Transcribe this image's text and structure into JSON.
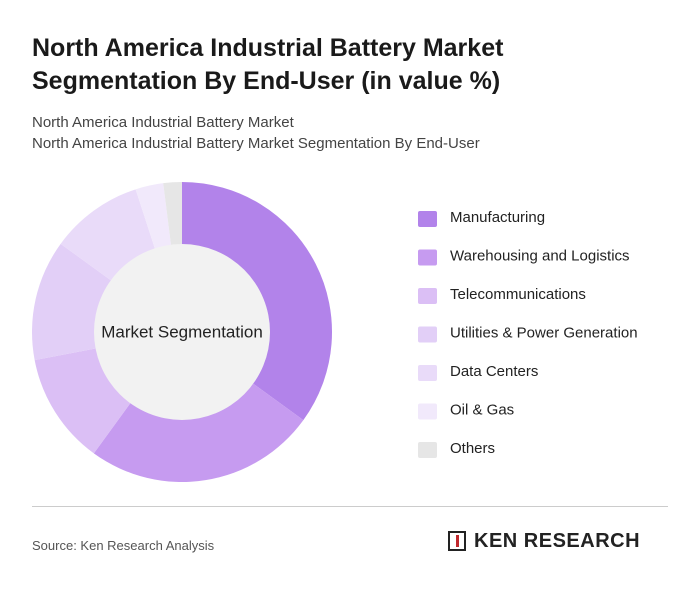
{
  "chart_data": {
    "type": "donut",
    "title": "North America Industrial Battery Market Segmentation By End-User (in value %)",
    "subtitle": "North America Industrial Battery Market",
    "subtitle2": "North America Industrial Battery Market Segmentation By End-User",
    "center_label": "Market Segmentation",
    "categories": [
      "Manufacturing",
      "Warehousing and Logistics",
      "Telecommunications",
      "Utilities & Power Generation",
      "Data Centers",
      "Oil & Gas",
      "Others"
    ],
    "values": [
      35,
      25,
      12,
      13,
      10,
      3,
      2
    ],
    "colors": [
      "#b283ea",
      "#c69bf0",
      "#dbbff5",
      "#e2cff7",
      "#e9dbf9",
      "#f1e9fb",
      "#e6e6e6"
    ]
  },
  "source": "Source: Ken Research Analysis",
  "logo": "KEN RESEARCH"
}
